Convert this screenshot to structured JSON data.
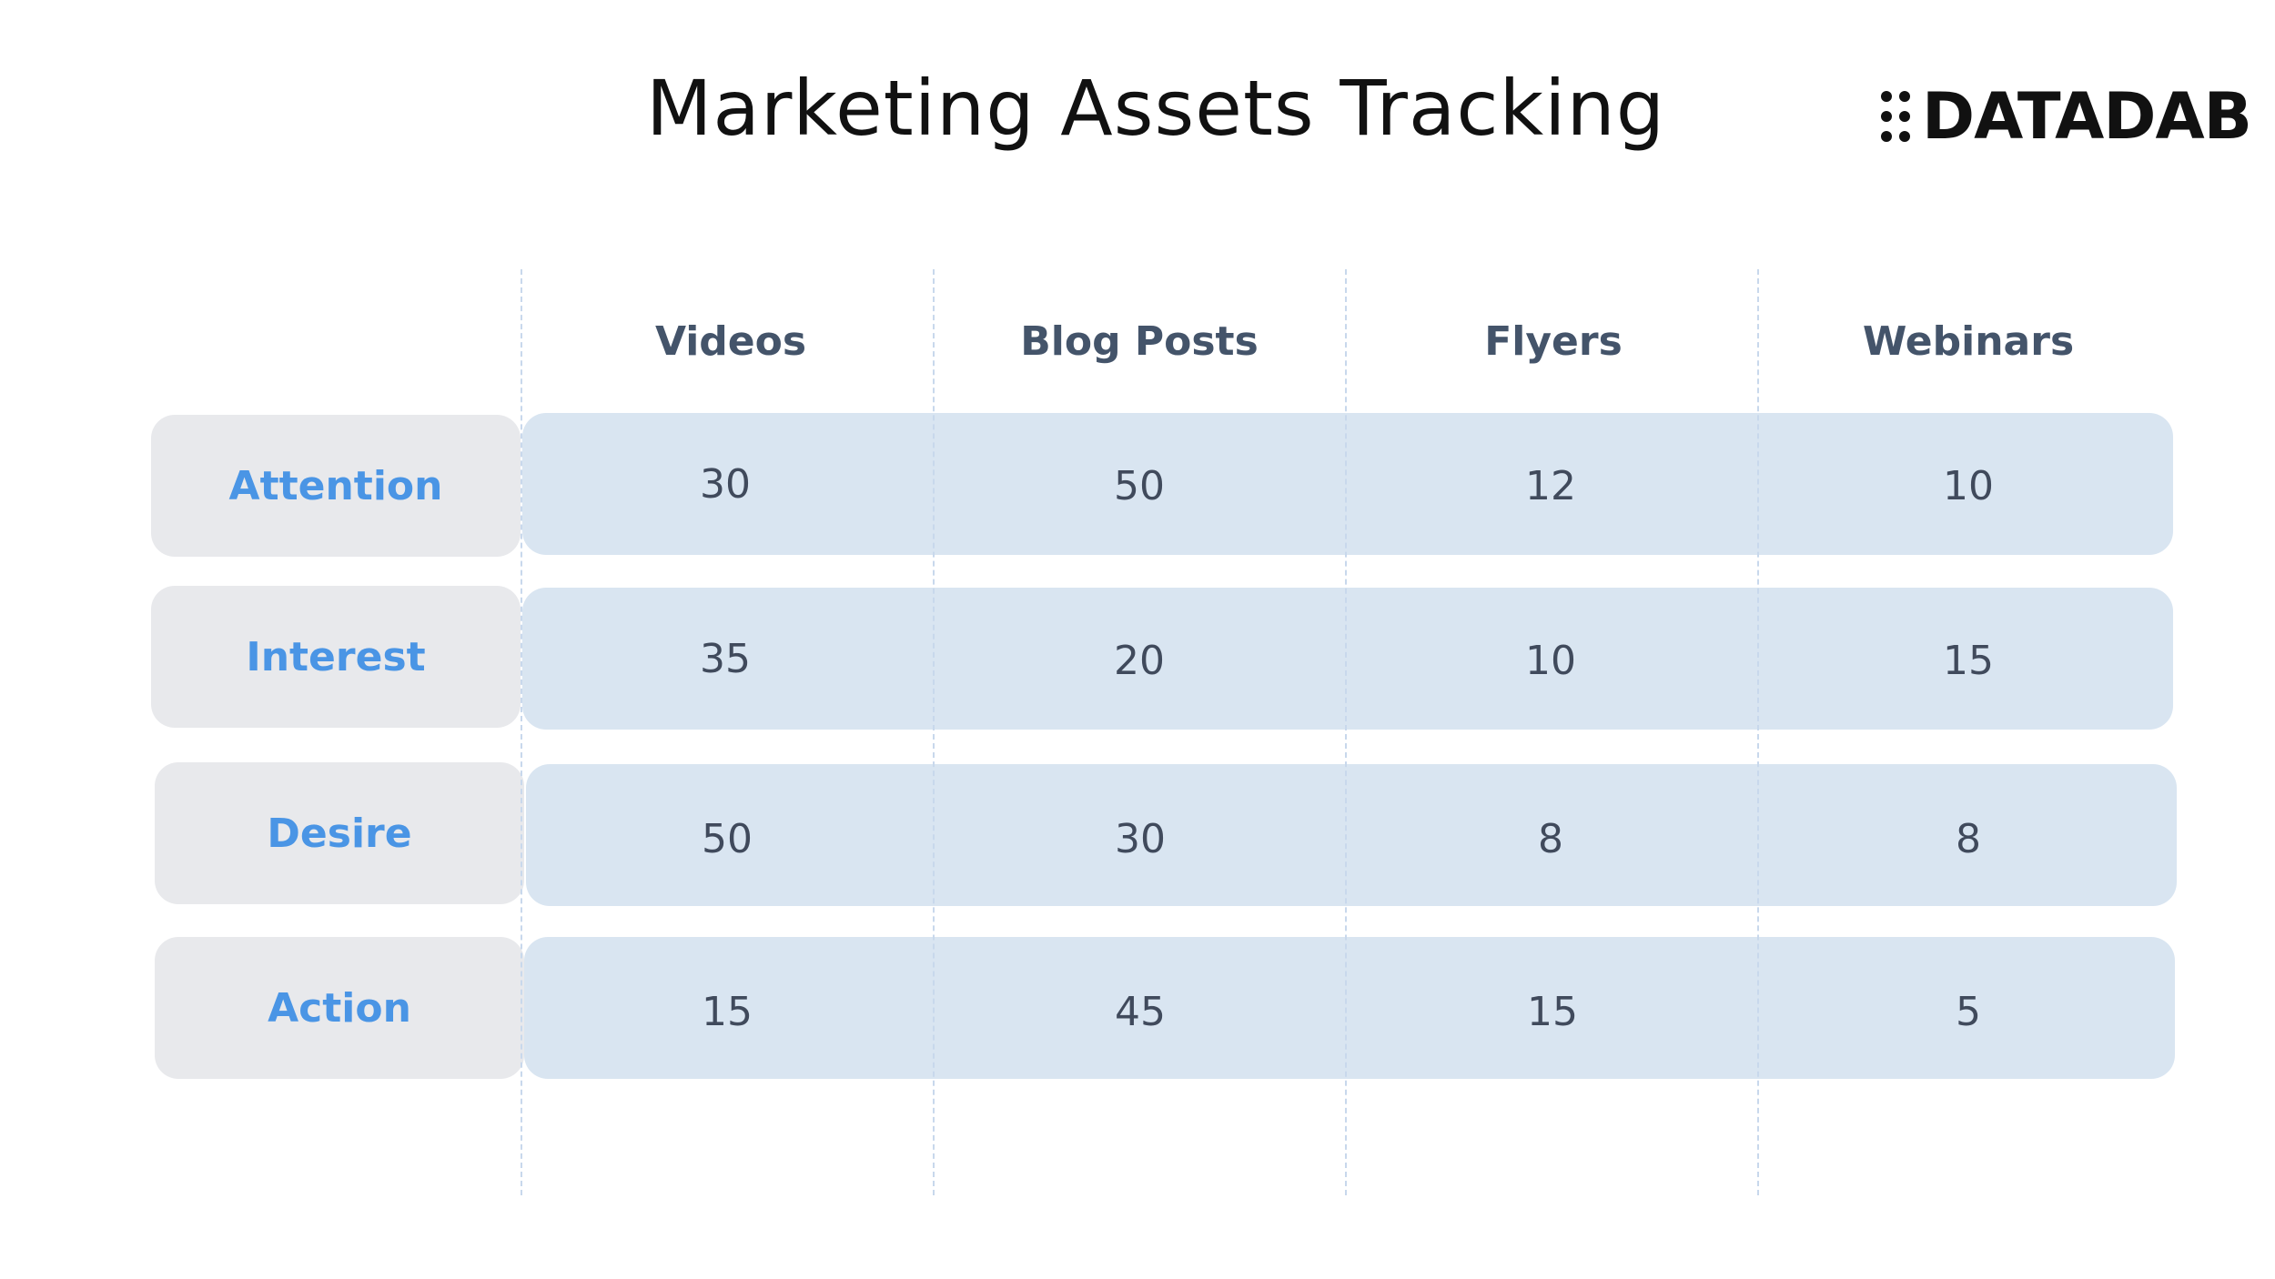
{
  "header": {
    "title": "Marketing Assets Tracking",
    "logo_text": "DATADAB"
  },
  "colors": {
    "label_bg": "#e8e9ec",
    "label_text": "#4a95e5",
    "band_bg": "#d9e5f1",
    "header_text": "#44546a",
    "value_text": "#404a5c"
  },
  "chart_data": {
    "type": "table",
    "title": "Marketing Assets Tracking",
    "columns": [
      "Videos",
      "Blog Posts",
      "Flyers",
      "Webinars"
    ],
    "rows": [
      {
        "label": "Attention",
        "values": [
          30,
          50,
          12,
          10
        ]
      },
      {
        "label": "Interest",
        "values": [
          35,
          20,
          10,
          15
        ]
      },
      {
        "label": "Desire",
        "values": [
          50,
          30,
          8,
          8
        ]
      },
      {
        "label": "Action",
        "values": [
          15,
          45,
          15,
          5
        ]
      }
    ]
  }
}
